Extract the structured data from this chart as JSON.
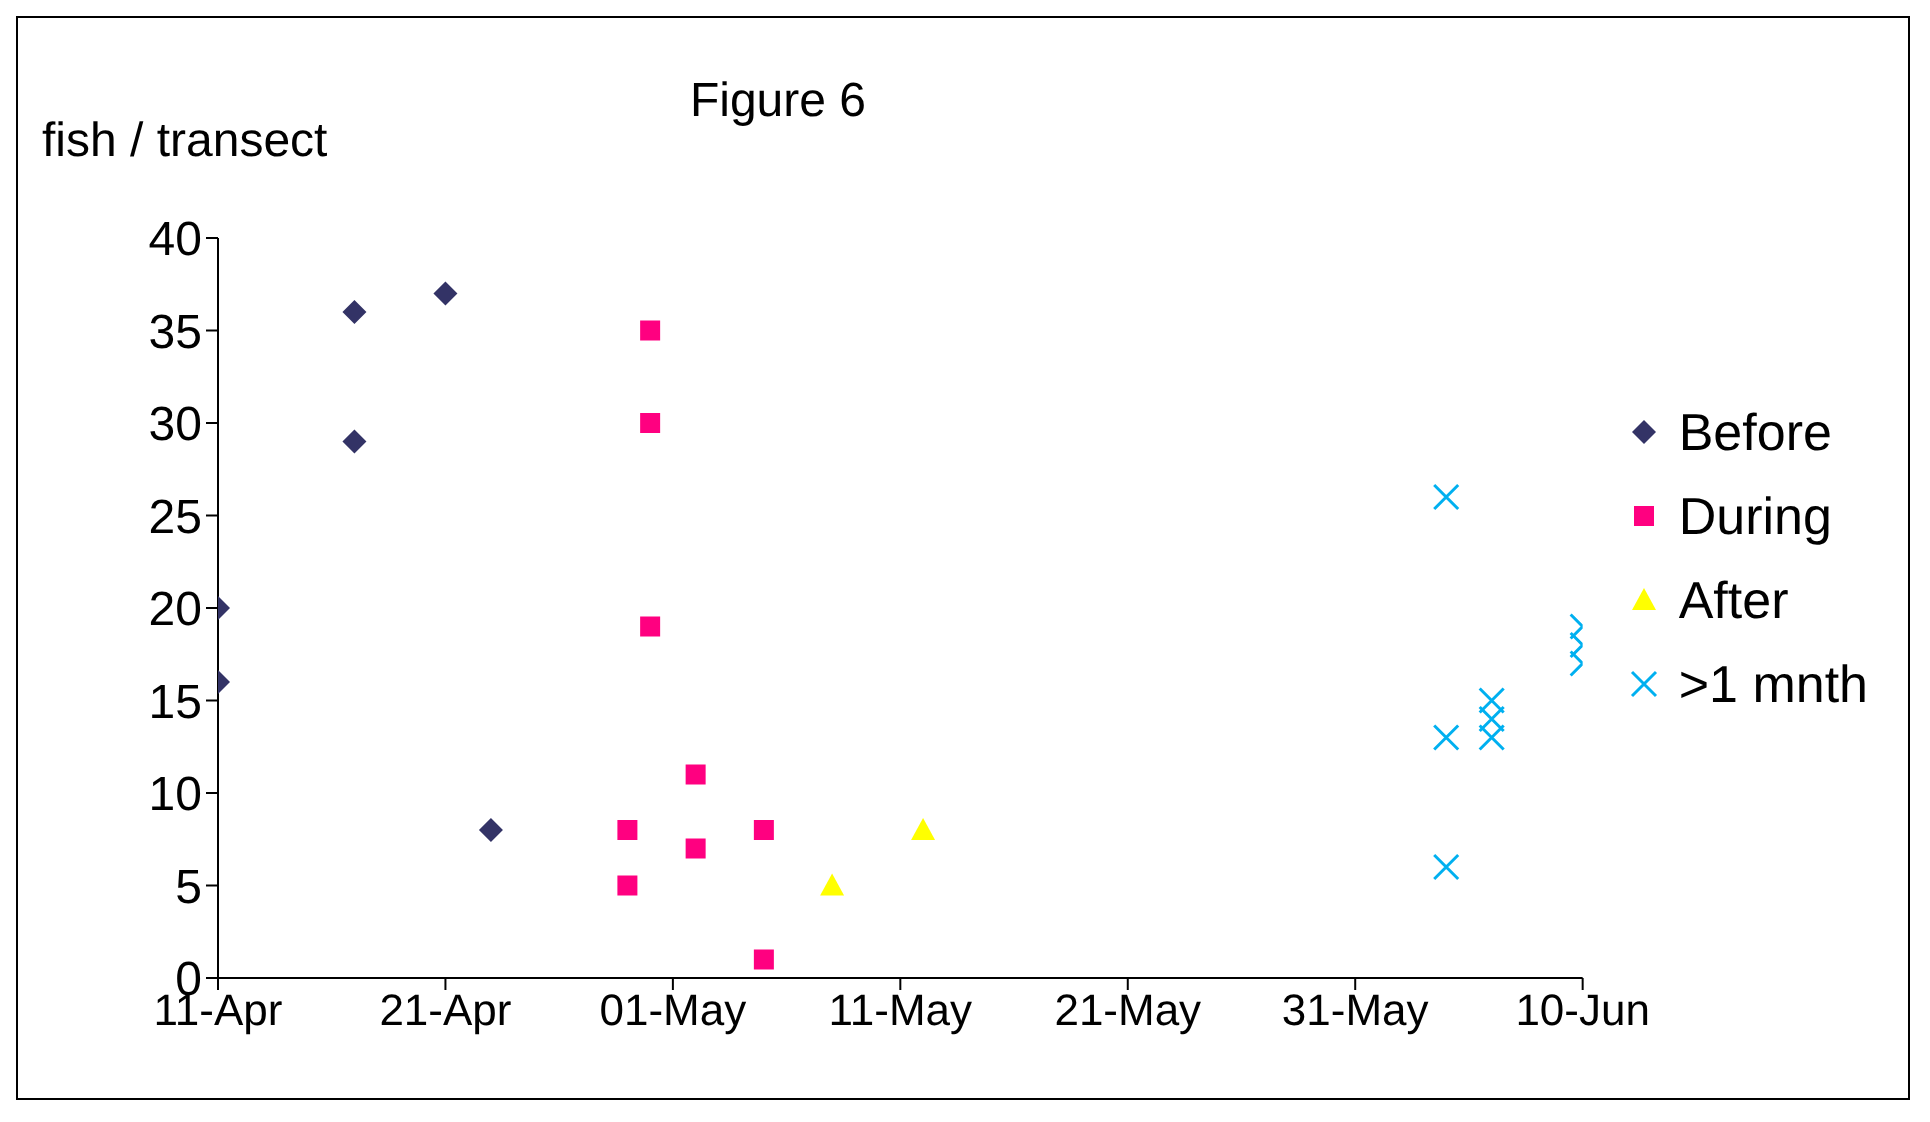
{
  "chart_data": {
    "type": "scatter",
    "title": "Figure 6",
    "ylabel": "fish / transect",
    "xlim": [
      "--04-11",
      "--06-10"
    ],
    "xticks": [
      {
        "value": "--04-11",
        "label": "11-Apr"
      },
      {
        "value": "--04-21",
        "label": "21-Apr"
      },
      {
        "value": "--05-01",
        "label": "01-May"
      },
      {
        "value": "--05-11",
        "label": "11-May"
      },
      {
        "value": "--05-21",
        "label": "21-May"
      },
      {
        "value": "--05-31",
        "label": "31-May"
      },
      {
        "value": "--06-10",
        "label": "10-Jun"
      }
    ],
    "ylim": [
      0,
      40
    ],
    "yticks": [
      0,
      5,
      10,
      15,
      20,
      25,
      30,
      35,
      40
    ],
    "legend": "right",
    "series": [
      {
        "name": "Before",
        "color": "#333366",
        "marker": "diamond",
        "x": [
          "--04-11",
          "--04-11",
          "--04-17",
          "--04-17",
          "--04-21",
          "--04-23"
        ],
        "values": [
          20,
          16,
          36,
          29,
          37,
          8
        ]
      },
      {
        "name": "During",
        "color": "#ff0080",
        "marker": "square",
        "x": [
          "--04-30",
          "--04-30",
          "--04-30",
          "--04-29",
          "--04-29",
          "--05-02",
          "--05-02",
          "--05-05",
          "--05-05"
        ],
        "values": [
          35,
          30,
          19,
          8,
          5,
          11,
          7,
          8,
          1
        ]
      },
      {
        "name": "After",
        "color": "#ffff00",
        "marker": "triangle",
        "x": [
          "--05-08",
          "--05-12"
        ],
        "values": [
          5,
          8
        ]
      },
      {
        "name": ">1 mnth",
        "color": "#00b0f0",
        "marker": "cross",
        "x": [
          "--06-04",
          "--06-04",
          "--06-04",
          "--06-06",
          "--06-06",
          "--06-06",
          "--06-10",
          "--06-10",
          "--06-10"
        ],
        "values": [
          26,
          13,
          6,
          15,
          14,
          13,
          19,
          18,
          17
        ]
      }
    ]
  }
}
